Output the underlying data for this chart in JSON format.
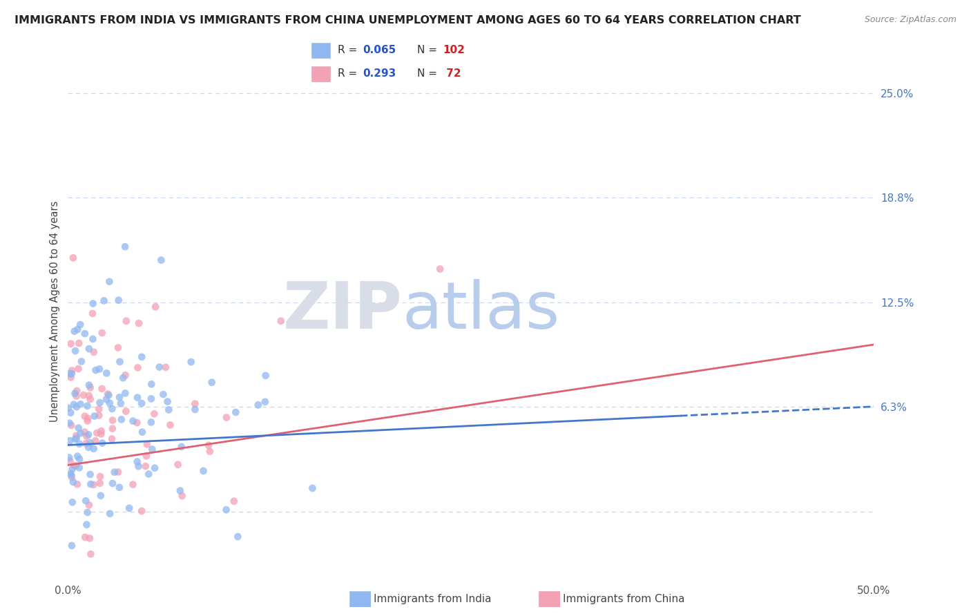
{
  "title": "IMMIGRANTS FROM INDIA VS IMMIGRANTS FROM CHINA UNEMPLOYMENT AMONG AGES 60 TO 64 YEARS CORRELATION CHART",
  "source": "Source: ZipAtlas.com",
  "ylabel": "Unemployment Among Ages 60 to 64 years",
  "xlim": [
    0.0,
    0.5
  ],
  "ylim": [
    -0.04,
    0.28
  ],
  "ytick_positions": [
    0.0,
    0.063,
    0.125,
    0.188,
    0.25
  ],
  "ytick_labels": [
    "",
    "6.3%",
    "12.5%",
    "18.8%",
    "25.0%"
  ],
  "india_R": 0.065,
  "india_N": 102,
  "china_R": 0.293,
  "china_N": 72,
  "india_color": "#90b8f0",
  "china_color": "#f4a0b5",
  "india_line_color": "#4477cc",
  "china_line_color": "#e06070",
  "background_color": "#ffffff",
  "grid_color": "#c8d8ee",
  "title_fontsize": 11.5,
  "source_fontsize": 9
}
